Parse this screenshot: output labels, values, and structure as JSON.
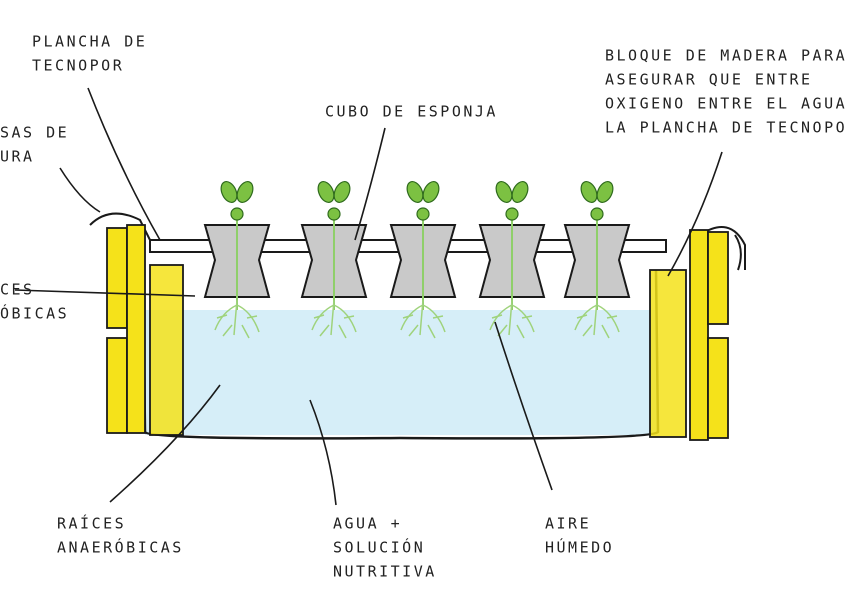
{
  "labels": [
    {
      "lines": [
        "PLANCHA DE",
        "TECNOPOR"
      ]
    },
    {
      "lines": [
        "SAS DE",
        "URA"
      ]
    },
    {
      "lines": [
        "CES",
        "ÓBICAS"
      ]
    },
    {
      "lines": [
        "CUBO DE ESPONJA"
      ]
    },
    {
      "lines": [
        "BLOQUE DE MADERA PARA",
        "ASEGURAR QUE ENTRE",
        "OXIGENO ENTRE EL AGUA",
        "LA PLANCHA DE TECNOPO"
      ]
    },
    {
      "lines": [
        "RAÍCES",
        "ANAERÓBICAS"
      ]
    },
    {
      "lines": [
        "AGUA +",
        "SOLUCIÓN",
        "NUTRITIVA"
      ]
    },
    {
      "lines": [
        "AIRE",
        "HÚMEDO"
      ]
    }
  ]
}
